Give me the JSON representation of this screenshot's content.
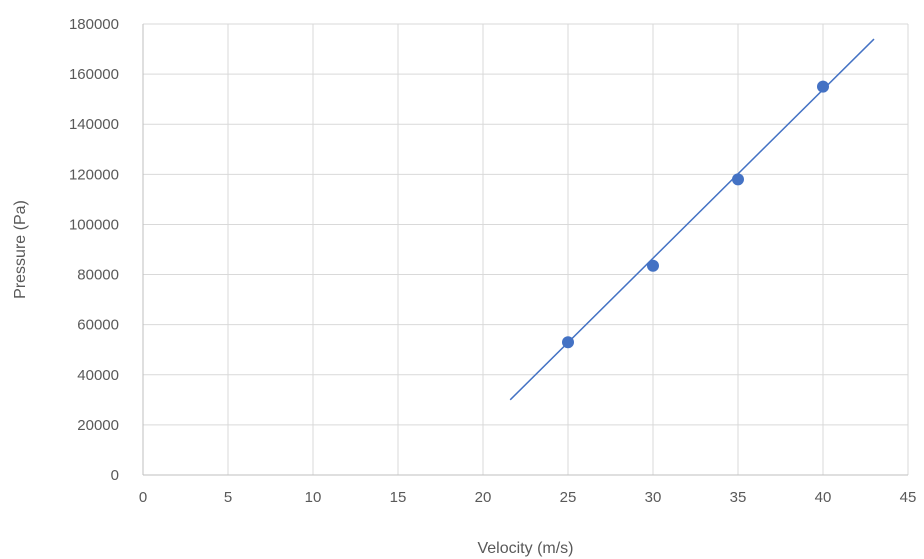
{
  "chart_data": {
    "type": "scatter",
    "title": "",
    "xlabel": "Velocity (m/s)",
    "ylabel": "Pressure (Pa)",
    "xlim": [
      0,
      45
    ],
    "ylim": [
      0,
      180000
    ],
    "x_ticks": [
      "0",
      "5",
      "10",
      "15",
      "20",
      "25",
      "30",
      "35",
      "40",
      "45"
    ],
    "y_ticks": [
      "0",
      "20000",
      "40000",
      "60000",
      "80000",
      "100000",
      "120000",
      "140000",
      "160000",
      "180000"
    ],
    "grid": true,
    "legend": "none",
    "series": [
      {
        "points": [
          {
            "x": 25,
            "y": 53000
          },
          {
            "x": 30,
            "y": 83500
          },
          {
            "x": 35,
            "y": 118000
          },
          {
            "x": 40,
            "y": 155000
          }
        ],
        "color": "#4472c4"
      }
    ],
    "trendline": {
      "type": "linear",
      "from": {
        "x": 21.6,
        "y": 30000
      },
      "to": {
        "x": 43,
        "y": 174000
      },
      "color": "#4472c4"
    }
  }
}
